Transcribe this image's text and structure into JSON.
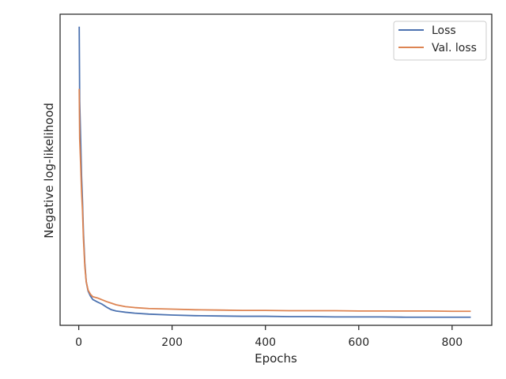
{
  "chart_data": {
    "type": "line",
    "title": "",
    "xlabel": "Epochs",
    "ylabel": "Negative log-likelihood",
    "xlim": [
      -40,
      885
    ],
    "ylim": [
      0.0,
      1.0
    ],
    "y_ticks_shown": false,
    "x_ticks": [
      0,
      200,
      400,
      600,
      800
    ],
    "x_tick_labels": [
      "0",
      "200",
      "400",
      "600",
      "800"
    ],
    "grid": false,
    "legend": {
      "placement": "top-right",
      "entries": [
        "Loss",
        "Val. loss"
      ]
    },
    "series": [
      {
        "name": "Loss",
        "color": "#4c72b0",
        "x": [
          1,
          2,
          4,
          6,
          8,
          10,
          13,
          16,
          20,
          25,
          30,
          40,
          50,
          60,
          70,
          80,
          100,
          120,
          150,
          200,
          250,
          300,
          350,
          400,
          450,
          500,
          550,
          600,
          650,
          700,
          750,
          800,
          840
        ],
        "y": [
          0.96,
          0.72,
          0.6,
          0.48,
          0.4,
          0.3,
          0.2,
          0.14,
          0.11,
          0.094,
          0.083,
          0.075,
          0.068,
          0.058,
          0.05,
          0.046,
          0.042,
          0.039,
          0.036,
          0.033,
          0.031,
          0.03,
          0.029,
          0.029,
          0.028,
          0.028,
          0.027,
          0.027,
          0.027,
          0.026,
          0.026,
          0.026,
          0.026
        ]
      },
      {
        "name": "Val. loss",
        "color": "#dd8452",
        "x": [
          1,
          2,
          4,
          6,
          8,
          10,
          13,
          16,
          20,
          25,
          30,
          40,
          50,
          60,
          70,
          80,
          100,
          120,
          150,
          200,
          250,
          300,
          350,
          400,
          450,
          500,
          550,
          600,
          650,
          700,
          750,
          800,
          840
        ],
        "y": [
          0.76,
          0.6,
          0.52,
          0.43,
          0.37,
          0.28,
          0.19,
          0.14,
          0.113,
          0.1,
          0.092,
          0.088,
          0.082,
          0.076,
          0.071,
          0.066,
          0.06,
          0.057,
          0.054,
          0.052,
          0.05,
          0.049,
          0.048,
          0.048,
          0.047,
          0.047,
          0.047,
          0.046,
          0.046,
          0.046,
          0.046,
          0.045,
          0.045
        ]
      }
    ]
  }
}
